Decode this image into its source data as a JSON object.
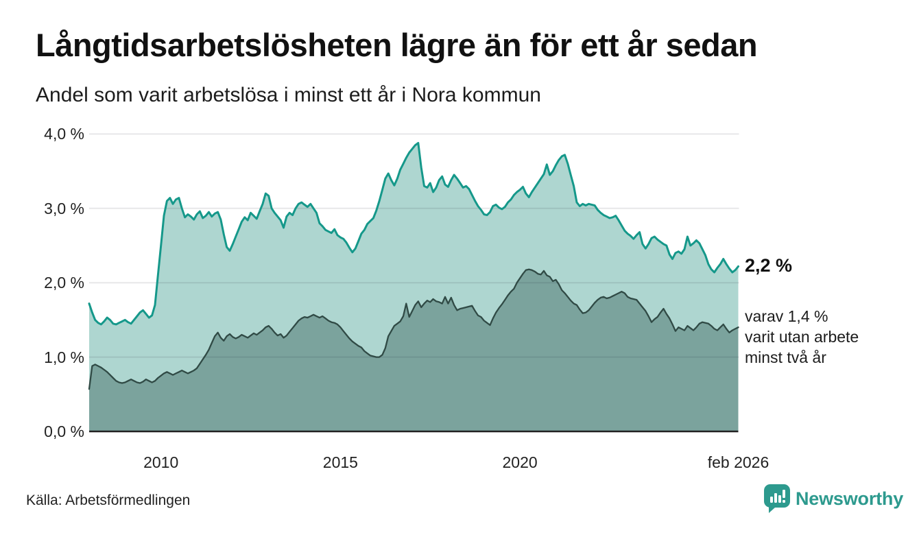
{
  "header": {
    "title": "Långtidsarbetslösheten lägre än för ett år sedan",
    "subtitle": "Andel som varit arbetslösa i minst ett år i Nora kommun"
  },
  "chart_data": {
    "type": "area",
    "title": "Långtidsarbetslösheten lägre än för ett år sedan",
    "subtitle": "Andel som varit arbetslösa i minst ett år i Nora kommun",
    "unit": "%",
    "interval": "monthly",
    "x_start": "2008-01",
    "x_end": "2026-02",
    "ylim": [
      0.0,
      4.0
    ],
    "grid": true,
    "y_ticks": [
      {
        "value": 0.0,
        "label": "0,0 %"
      },
      {
        "value": 1.0,
        "label": "1,0 %"
      },
      {
        "value": 2.0,
        "label": "2,0 %"
      },
      {
        "value": 3.0,
        "label": "3,0 %"
      },
      {
        "value": 4.0,
        "label": "4,0 %"
      }
    ],
    "x_ticks": [
      {
        "label": "2010",
        "month_index": 24
      },
      {
        "label": "2015",
        "month_index": 84
      },
      {
        "label": "2020",
        "month_index": 144
      },
      {
        "label": "feb 2026",
        "month_index": 217
      }
    ],
    "series": [
      {
        "name": "Andel som varit arbetslösa minst ett år",
        "line_color": "#15988a",
        "fill_color": "#aed6d0",
        "line_width": 3,
        "latest_value": 2.2,
        "values": [
          1.72,
          1.6,
          1.5,
          1.46,
          1.44,
          1.48,
          1.53,
          1.5,
          1.45,
          1.44,
          1.46,
          1.48,
          1.5,
          1.47,
          1.45,
          1.5,
          1.55,
          1.6,
          1.63,
          1.58,
          1.53,
          1.56,
          1.7,
          2.1,
          2.5,
          2.9,
          3.1,
          3.14,
          3.06,
          3.12,
          3.14,
          3.0,
          2.88,
          2.92,
          2.89,
          2.85,
          2.92,
          2.96,
          2.87,
          2.9,
          2.95,
          2.89,
          2.93,
          2.95,
          2.85,
          2.65,
          2.48,
          2.43,
          2.52,
          2.62,
          2.72,
          2.82,
          2.88,
          2.84,
          2.94,
          2.9,
          2.86,
          2.96,
          3.06,
          3.2,
          3.17,
          3.0,
          2.94,
          2.89,
          2.84,
          2.74,
          2.89,
          2.94,
          2.91,
          3.0,
          3.06,
          3.08,
          3.05,
          3.02,
          3.06,
          3.0,
          2.94,
          2.8,
          2.76,
          2.71,
          2.69,
          2.67,
          2.72,
          2.64,
          2.61,
          2.59,
          2.54,
          2.47,
          2.41,
          2.46,
          2.56,
          2.66,
          2.71,
          2.79,
          2.83,
          2.87,
          2.97,
          3.1,
          3.25,
          3.4,
          3.47,
          3.38,
          3.31,
          3.4,
          3.52,
          3.6,
          3.68,
          3.75,
          3.8,
          3.85,
          3.88,
          3.55,
          3.3,
          3.28,
          3.34,
          3.22,
          3.28,
          3.38,
          3.43,
          3.32,
          3.29,
          3.38,
          3.45,
          3.4,
          3.34,
          3.28,
          3.3,
          3.26,
          3.18,
          3.1,
          3.03,
          2.98,
          2.92,
          2.91,
          2.95,
          3.03,
          3.05,
          3.01,
          2.99,
          3.02,
          3.08,
          3.12,
          3.18,
          3.22,
          3.25,
          3.29,
          3.2,
          3.15,
          3.22,
          3.28,
          3.34,
          3.4,
          3.46,
          3.59,
          3.45,
          3.5,
          3.58,
          3.65,
          3.7,
          3.72,
          3.6,
          3.45,
          3.3,
          3.08,
          3.03,
          3.06,
          3.04,
          3.06,
          3.05,
          3.04,
          2.98,
          2.94,
          2.91,
          2.89,
          2.87,
          2.88,
          2.9,
          2.84,
          2.77,
          2.7,
          2.66,
          2.63,
          2.59,
          2.64,
          2.68,
          2.52,
          2.46,
          2.52,
          2.6,
          2.62,
          2.58,
          2.55,
          2.52,
          2.5,
          2.38,
          2.32,
          2.4,
          2.42,
          2.39,
          2.45,
          2.62,
          2.5,
          2.53,
          2.57,
          2.53,
          2.45,
          2.37,
          2.25,
          2.18,
          2.14,
          2.2,
          2.25,
          2.32,
          2.25,
          2.19,
          2.14,
          2.17,
          2.22
        ]
      },
      {
        "name": "Andel som varit utan arbete minst två år",
        "line_color": "#304a45",
        "fill_color": "#7ba39d",
        "line_width": 2.3,
        "latest_value": 1.4,
        "values": [
          0.57,
          0.88,
          0.9,
          0.88,
          0.86,
          0.83,
          0.8,
          0.76,
          0.72,
          0.68,
          0.66,
          0.65,
          0.66,
          0.68,
          0.7,
          0.68,
          0.66,
          0.65,
          0.67,
          0.7,
          0.68,
          0.66,
          0.68,
          0.72,
          0.75,
          0.78,
          0.8,
          0.78,
          0.76,
          0.78,
          0.8,
          0.82,
          0.8,
          0.78,
          0.8,
          0.82,
          0.85,
          0.91,
          0.97,
          1.03,
          1.1,
          1.19,
          1.28,
          1.33,
          1.26,
          1.22,
          1.28,
          1.31,
          1.27,
          1.25,
          1.27,
          1.3,
          1.28,
          1.26,
          1.29,
          1.32,
          1.3,
          1.33,
          1.36,
          1.4,
          1.42,
          1.38,
          1.33,
          1.29,
          1.31,
          1.26,
          1.29,
          1.34,
          1.39,
          1.44,
          1.49,
          1.52,
          1.54,
          1.53,
          1.55,
          1.57,
          1.55,
          1.53,
          1.55,
          1.52,
          1.49,
          1.47,
          1.46,
          1.44,
          1.4,
          1.35,
          1.3,
          1.25,
          1.21,
          1.18,
          1.15,
          1.13,
          1.08,
          1.05,
          1.02,
          1.01,
          1.0,
          1.0,
          1.03,
          1.12,
          1.28,
          1.35,
          1.42,
          1.45,
          1.48,
          1.55,
          1.72,
          1.54,
          1.62,
          1.7,
          1.75,
          1.67,
          1.72,
          1.76,
          1.74,
          1.78,
          1.75,
          1.74,
          1.72,
          1.81,
          1.72,
          1.8,
          1.7,
          1.63,
          1.65,
          1.66,
          1.67,
          1.68,
          1.69,
          1.62,
          1.56,
          1.54,
          1.49,
          1.46,
          1.43,
          1.52,
          1.6,
          1.66,
          1.71,
          1.77,
          1.83,
          1.88,
          1.92,
          2.0,
          2.06,
          2.12,
          2.17,
          2.18,
          2.17,
          2.15,
          2.12,
          2.11,
          2.16,
          2.1,
          2.08,
          2.02,
          2.04,
          1.98,
          1.9,
          1.86,
          1.81,
          1.76,
          1.72,
          1.7,
          1.64,
          1.59,
          1.6,
          1.63,
          1.68,
          1.73,
          1.77,
          1.8,
          1.81,
          1.79,
          1.8,
          1.82,
          1.84,
          1.86,
          1.88,
          1.86,
          1.81,
          1.79,
          1.78,
          1.77,
          1.72,
          1.67,
          1.62,
          1.55,
          1.47,
          1.51,
          1.54,
          1.6,
          1.65,
          1.58,
          1.52,
          1.44,
          1.35,
          1.4,
          1.38,
          1.36,
          1.42,
          1.39,
          1.36,
          1.4,
          1.45,
          1.47,
          1.46,
          1.45,
          1.42,
          1.38,
          1.36,
          1.4,
          1.44,
          1.38,
          1.33,
          1.36,
          1.38,
          1.4
        ]
      }
    ]
  },
  "annotations": {
    "latest_total": "2,2 %",
    "latest_sub_line1": "varav 1,4 %",
    "latest_sub_line2": "varit utan arbete",
    "latest_sub_line3": "minst två år"
  },
  "footer": {
    "source": "Källa: Arbetsförmedlingen",
    "brand": "Newsworthy"
  },
  "colors": {
    "accent_teal": "#15988a",
    "light_fill": "#aed6d0",
    "dark_fill": "#7ba39d",
    "dark_line": "#304a45",
    "grid": "#e5e5e7",
    "baseline": "#222222",
    "brand_teal": "#2d9a8e"
  }
}
